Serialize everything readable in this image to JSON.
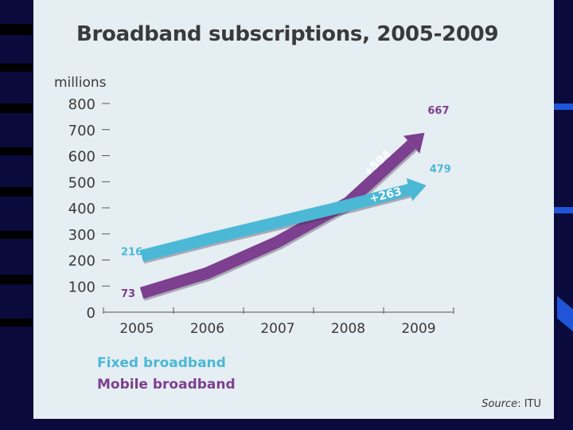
{
  "chart_data": {
    "type": "line",
    "title": "Broadband subscriptions, 2005-2009",
    "ylabel": "millions",
    "xlabel": "",
    "categories": [
      "2005",
      "2006",
      "2007",
      "2008",
      "2009"
    ],
    "ylim": [
      0,
      800
    ],
    "yticks": [
      0,
      100,
      200,
      300,
      400,
      500,
      600,
      700,
      800
    ],
    "series": [
      {
        "name": "Fixed broadband",
        "color": "#4bb8d6",
        "values": [
          216,
          280,
          345,
          410,
          479
        ],
        "start_label": "216",
        "end_label": "479",
        "change_label": "+263"
      },
      {
        "name": "Mobile broadband",
        "color": "#7d3f8f",
        "values": [
          73,
          150,
          270,
          420,
          667
        ],
        "start_label": "73",
        "end_label": "667",
        "change_label": "+594"
      }
    ],
    "legend": "bottom-left",
    "grid": false
  },
  "source": {
    "prefix": "Source",
    "suffix": ": ITU"
  }
}
